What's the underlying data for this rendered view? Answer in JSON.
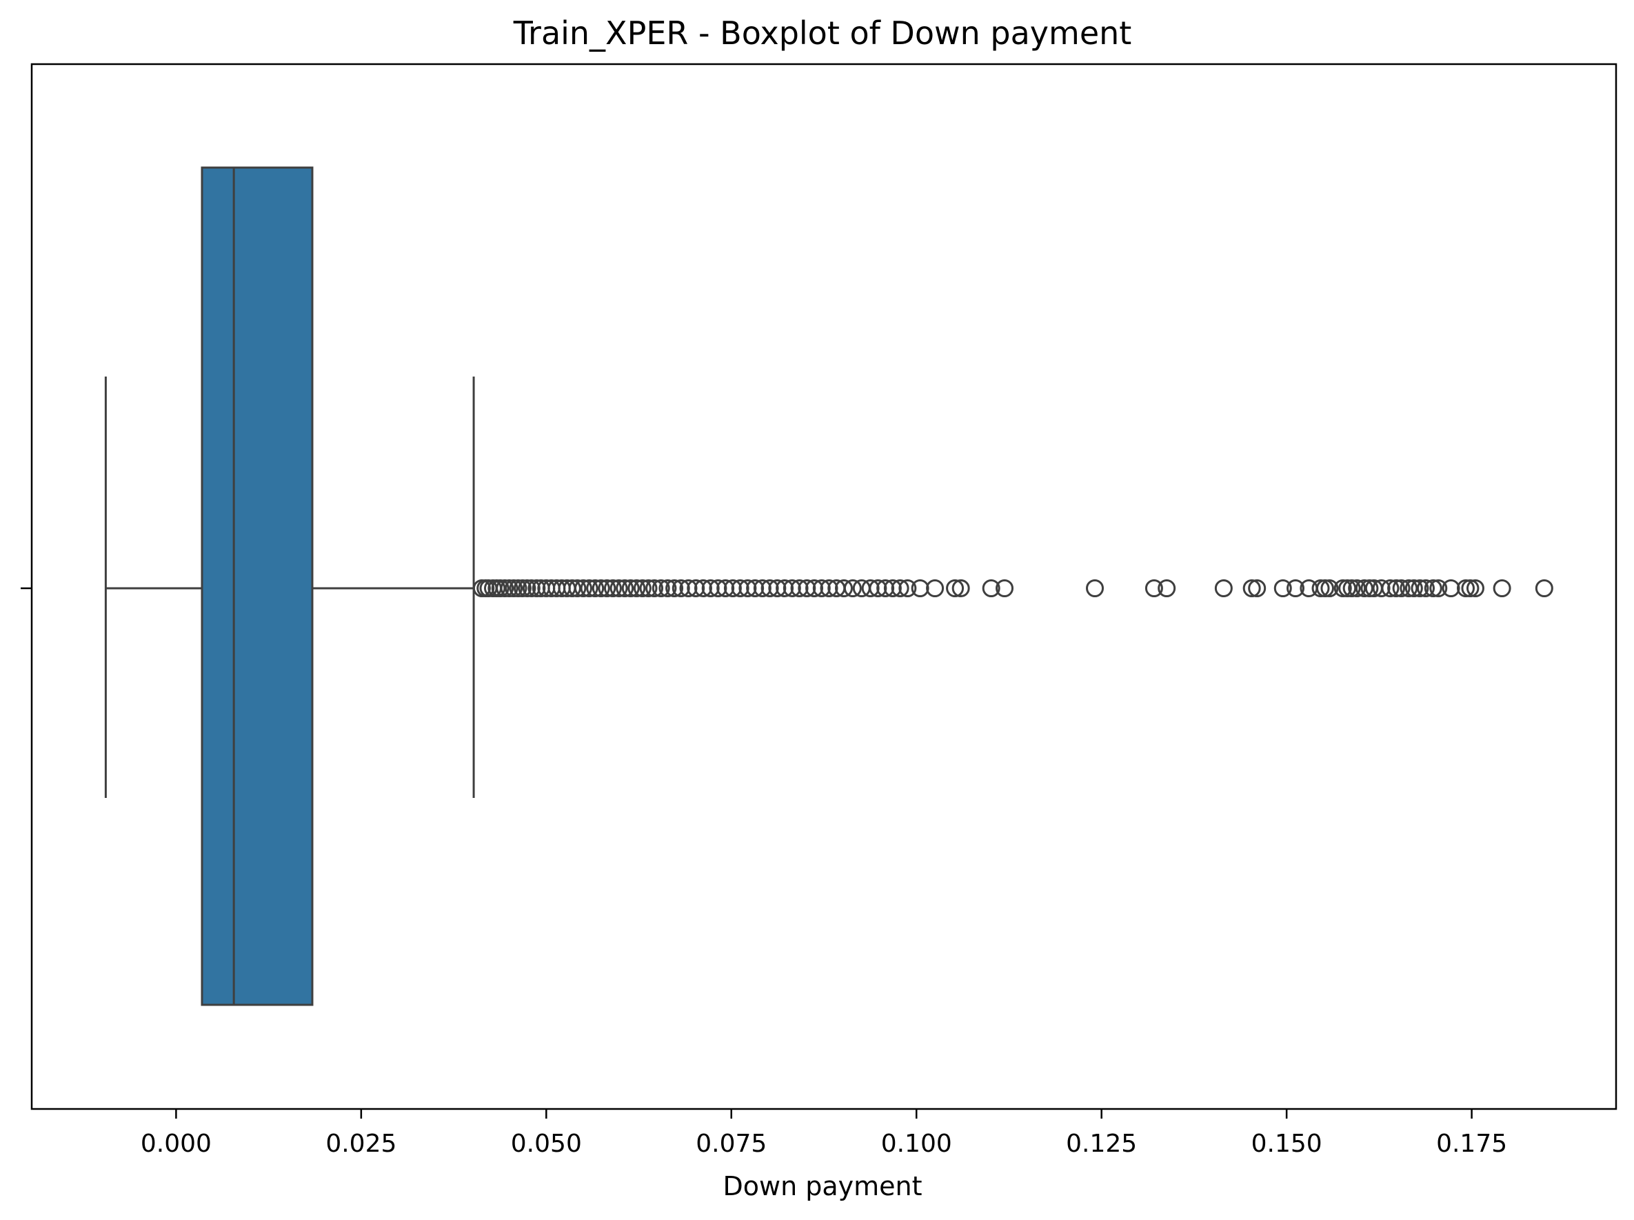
{
  "chart_data": {
    "type": "boxplot",
    "orientation": "horizontal",
    "title": "Train_XPER - Boxplot of Down payment",
    "xlabel": "Down payment",
    "xlim": [
      -0.0195,
      0.1945
    ],
    "x_ticks": [
      0.0,
      0.025,
      0.05,
      0.075,
      0.1,
      0.125,
      0.15,
      0.175
    ],
    "x_tick_labels": [
      "0.000",
      "0.025",
      "0.050",
      "0.075",
      "0.100",
      "0.125",
      "0.150",
      "0.175"
    ],
    "grid": false,
    "legend": "none",
    "colors": {
      "box_fill": "#3274a1",
      "line": "#3f3f3f"
    },
    "series": [
      {
        "whisker_low": -0.0095,
        "q1": 0.0035,
        "median": 0.0078,
        "q3": 0.0184,
        "whisker_high": 0.0402,
        "outliers": [
          0.0413,
          0.0418,
          0.0422,
          0.0428,
          0.0433,
          0.0438,
          0.0444,
          0.045,
          0.0456,
          0.0462,
          0.0468,
          0.0474,
          0.048,
          0.0487,
          0.0493,
          0.05,
          0.0507,
          0.0514,
          0.0521,
          0.0528,
          0.0535,
          0.0542,
          0.055,
          0.0558,
          0.0566,
          0.0574,
          0.0582,
          0.059,
          0.0598,
          0.0606,
          0.0614,
          0.0622,
          0.063,
          0.0638,
          0.0646,
          0.0655,
          0.0664,
          0.0673,
          0.0682,
          0.0692,
          0.0702,
          0.0712,
          0.0722,
          0.0732,
          0.0742,
          0.0752,
          0.0762,
          0.0772,
          0.0782,
          0.0792,
          0.0802,
          0.0812,
          0.0822,
          0.0832,
          0.0842,
          0.0852,
          0.0862,
          0.0872,
          0.0882,
          0.0892,
          0.0902,
          0.0914,
          0.0926,
          0.0938,
          0.0948,
          0.0958,
          0.0968,
          0.0978,
          0.0988,
          0.1005,
          0.1025,
          0.1052,
          0.106,
          0.1101,
          0.1119,
          0.1241,
          0.1321,
          0.1338,
          0.1415,
          0.1453,
          0.146,
          0.1495,
          0.1512,
          0.153,
          0.1546,
          0.1552,
          0.1558,
          0.1576,
          0.1582,
          0.1588,
          0.1595,
          0.1605,
          0.1612,
          0.1618,
          0.1628,
          0.164,
          0.1648,
          0.1655,
          0.1665,
          0.1672,
          0.168,
          0.1688,
          0.1698,
          0.1705,
          0.1722,
          0.1742,
          0.1748,
          0.1755,
          0.1791,
          0.1848
        ]
      }
    ]
  }
}
